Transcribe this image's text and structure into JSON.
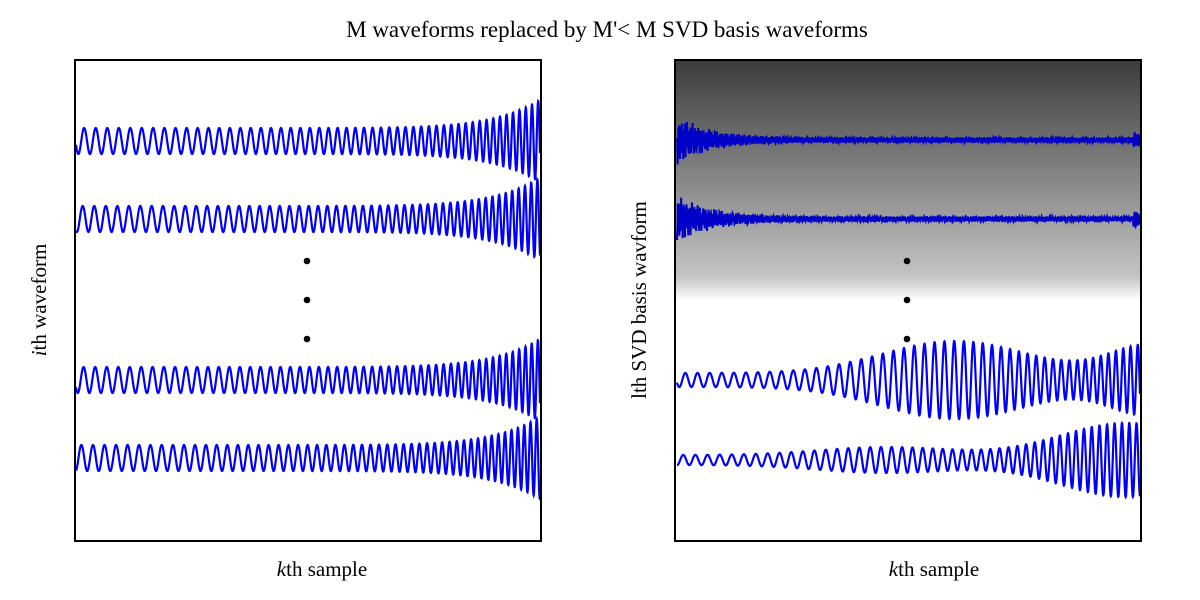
{
  "title": "M waveforms replaced by M'< M SVD basis waveforms",
  "colors": {
    "waveform_left": "#0000ff",
    "waveform_right": "#0000c8",
    "frame": "#000000",
    "shade_top": "#3c3c3c",
    "shade_bottom": "#ffffff"
  },
  "left_panel": {
    "xlabel_italic": "k",
    "xlabel_rest": "th sample",
    "ylabel_italic": "i",
    "ylabel_rest": "th waveform",
    "waveform_count_shown": 4,
    "ellipsis": "vertical dots"
  },
  "right_panel": {
    "xlabel_italic": "k",
    "xlabel_rest": "th sample",
    "ylabel": "lth SVD basis wavform",
    "basis_count_shown": 4,
    "background": "vertical gray gradient, dark at top",
    "ellipsis": "vertical dots"
  }
}
